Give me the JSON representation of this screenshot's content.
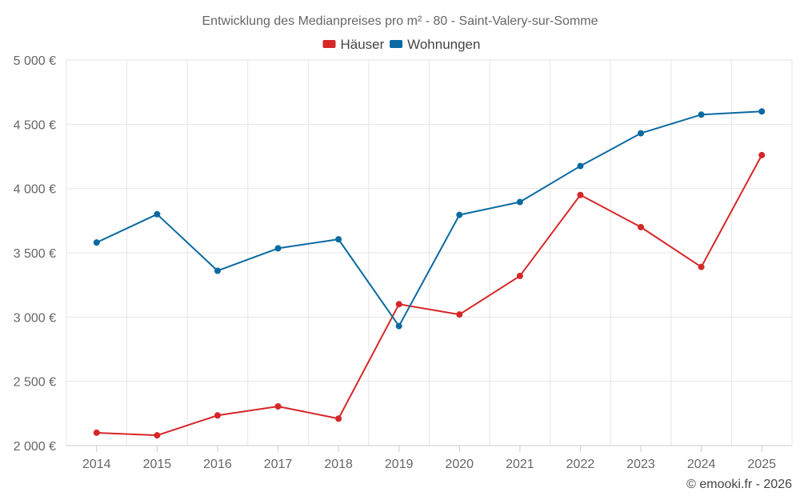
{
  "chart_data": {
    "type": "line",
    "title": "Entwicklung des Medianpreises pro m² - 80 - Saint-Valery-sur-Somme",
    "categories": [
      "2014",
      "2015",
      "2016",
      "2017",
      "2018",
      "2019",
      "2020",
      "2021",
      "2022",
      "2023",
      "2024",
      "2025"
    ],
    "series": [
      {
        "name": "Häuser",
        "color": "#d62728",
        "values": [
          2100,
          2080,
          2235,
          2305,
          2210,
          3100,
          3020,
          3320,
          3950,
          3700,
          3390,
          4260
        ]
      },
      {
        "name": "Wohnungen",
        "color": "#0a6aa1",
        "values": [
          3580,
          3800,
          3360,
          3535,
          3605,
          2930,
          3795,
          3895,
          4175,
          4430,
          4575,
          4600
        ]
      }
    ],
    "ylim": [
      2000,
      5000
    ],
    "yticks": [
      2000,
      2500,
      3000,
      3500,
      4000,
      4500,
      5000
    ],
    "ytick_labels": [
      "2 000 €",
      "2 500 €",
      "3 000 €",
      "3 500 €",
      "4 000 €",
      "4 500 €",
      "5 000 €"
    ],
    "grid": true,
    "legend_position": "top-center",
    "xlabel": "",
    "ylabel": ""
  },
  "credit": "© emooki.fr - 2026"
}
